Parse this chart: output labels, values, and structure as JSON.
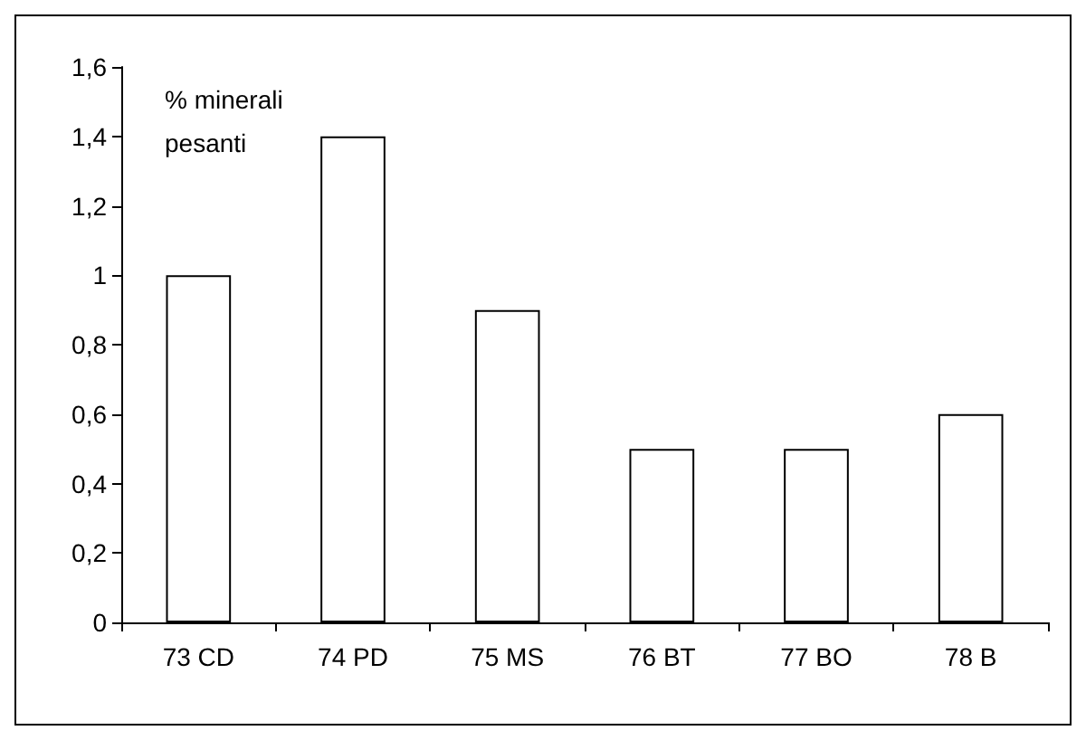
{
  "chart_data": {
    "type": "bar",
    "ylabel": "% minerali pesanti",
    "categories": [
      "73 CD",
      "74 PD",
      "75 MS",
      "76 BT",
      "77 BO",
      "78 B"
    ],
    "values": [
      1,
      1.4,
      0.9,
      0.5,
      0.5,
      0.6
    ],
    "color": "#ffffff",
    "ylim": [
      0,
      1.6
    ],
    "yticks": [
      0,
      {
        "value": 0.2,
        "label": "0,2"
      },
      {
        "value": 0.4,
        "label": "0,4"
      },
      {
        "value": 0.6,
        "label": "0,6"
      },
      {
        "value": 0.8,
        "label": "0,8"
      },
      1,
      {
        "value": 1.2,
        "label": "1,2"
      },
      {
        "value": 1.4,
        "label": "1,4"
      },
      {
        "value": 1.6,
        "label": "1,6"
      }
    ],
    "grid": false
  }
}
